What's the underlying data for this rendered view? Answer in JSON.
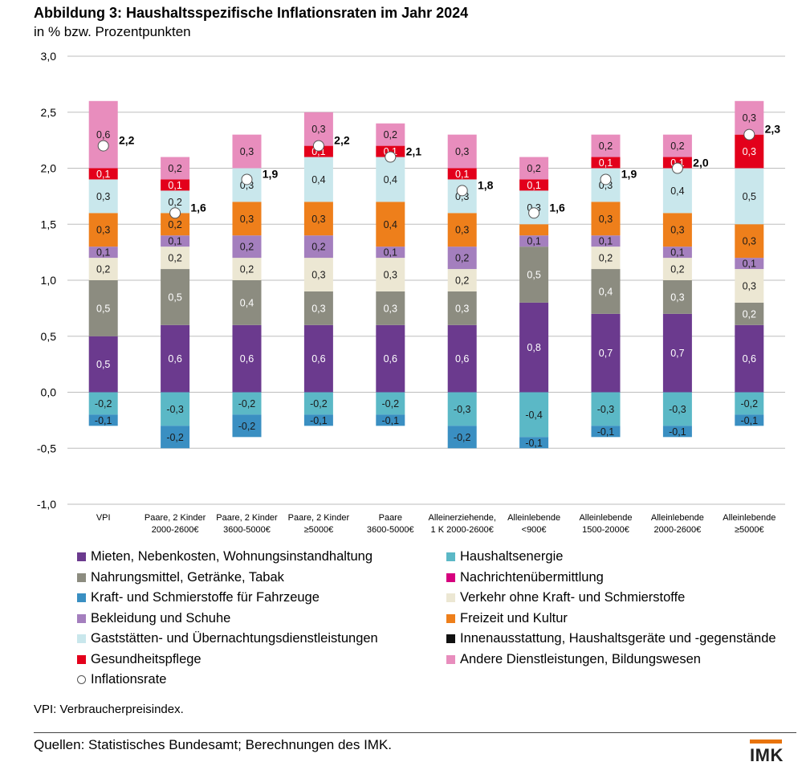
{
  "header": {
    "title": "Abbildung 3: Haushaltsspezifische Inflationsraten im Jahr 2024",
    "subtitle": "in % bzw. Prozentpunkten"
  },
  "chart_data": {
    "type": "bar",
    "stacked": true,
    "ylim": [
      -1.0,
      3.0
    ],
    "yticks": [
      "3,0",
      "2,5",
      "2,0",
      "1,5",
      "1,0",
      "0,5",
      "0,0",
      "-0,5",
      "-1,0"
    ],
    "ytick_values": [
      3.0,
      2.5,
      2.0,
      1.5,
      1.0,
      0.5,
      0.0,
      -0.5,
      -1.0
    ],
    "grid": true,
    "categories": [
      [
        "VPI",
        ""
      ],
      [
        "Paare, 2  Kinder",
        "2000-2600€"
      ],
      [
        "Paare, 2  Kinder",
        "3600-5000€"
      ],
      [
        "Paare, 2  Kinder",
        "≥5000€"
      ],
      [
        "Paare",
        "3600-5000€"
      ],
      [
        "Alleinerziehende,",
        "1 K 2000-2600€"
      ],
      [
        "Alleinlebende",
        "<900€"
      ],
      [
        "Alleinlebende",
        "1500-2000€"
      ],
      [
        "Alleinlebende",
        "2000-2600€"
      ],
      [
        "Alleinlebende",
        "≥5000€"
      ]
    ],
    "series": [
      {
        "name": "Mieten, Nebenkosten, Wohnungsinstandhaltung",
        "color": "#6b3a8e",
        "values": [
          0.5,
          0.6,
          0.6,
          0.6,
          0.6,
          0.6,
          0.8,
          0.7,
          0.7,
          0.6
        ],
        "labels": [
          "0,5",
          "0,6",
          "0,6",
          "0,6",
          "0,6",
          "0,6",
          "0,8",
          "0,7",
          "0,7",
          "0,6"
        ]
      },
      {
        "name": "Nahrungsmittel, Getränke, Tabak",
        "color": "#8c8c80",
        "values": [
          0.5,
          0.5,
          0.4,
          0.3,
          0.3,
          0.3,
          0.5,
          0.4,
          0.3,
          0.2
        ],
        "labels": [
          "0,5",
          "0,5",
          "0,4",
          "0,3",
          "0,3",
          "0,3",
          "0,5",
          "0,4",
          "0,3",
          "0,2"
        ]
      },
      {
        "name": "Verkehr ohne Kraft- und Schmierstoffe",
        "color": "#ece7d3",
        "values": [
          0.2,
          0.2,
          0.2,
          0.3,
          0.3,
          0.2,
          0.0,
          0.2,
          0.2,
          0.3
        ],
        "labels": [
          "0,2",
          "0,2",
          "0,2",
          "0,3",
          "0,3",
          "0,2",
          "",
          "0,2",
          "0,2",
          "0,3"
        ]
      },
      {
        "name": "Bekleidung und Schuhe",
        "color": "#a47fbe",
        "values": [
          0.1,
          0.1,
          0.2,
          0.2,
          0.1,
          0.2,
          0.1,
          0.1,
          0.1,
          0.1
        ],
        "labels": [
          "0,1",
          "0,1",
          "0,2",
          "0,2",
          "0,1",
          "0,2",
          "0,1",
          "0,1",
          "0,1",
          "0,1"
        ]
      },
      {
        "name": "Freizeit und Kultur",
        "color": "#ee7f1b",
        "values": [
          0.3,
          0.2,
          0.3,
          0.3,
          0.4,
          0.3,
          0.1,
          0.3,
          0.3,
          0.3
        ],
        "labels": [
          "0,3",
          "0,2",
          "0,3",
          "0,3",
          "0,4",
          "0,3",
          "",
          "0,3",
          "0,3",
          "0,3"
        ]
      },
      {
        "name": "Gaststätten- und Übernachtungsdienstleistungen",
        "color": "#c9e7ec",
        "values": [
          0.3,
          0.2,
          0.3,
          0.4,
          0.4,
          0.3,
          0.3,
          0.3,
          0.4,
          0.5
        ],
        "labels": [
          "0,3",
          "0,2",
          "0,3",
          "0,4",
          "0,4",
          "0,3",
          "0,3",
          "0,3",
          "0,4",
          "0,5"
        ]
      },
      {
        "name": "Gesundheitspflege",
        "color": "#e3001b",
        "values": [
          0.1,
          0.1,
          0.0,
          0.1,
          0.1,
          0.1,
          0.1,
          0.1,
          0.1,
          0.3
        ],
        "labels": [
          "0,1",
          "0,1",
          "",
          "0,1",
          "0,1",
          "0,1",
          "0,1",
          "0,1",
          "0,1",
          "0,3"
        ]
      },
      {
        "name": "Andere Dienstleistungen, Bildungswesen",
        "color": "#e88dbd",
        "values": [
          0.6,
          0.2,
          0.3,
          0.3,
          0.2,
          0.3,
          0.2,
          0.2,
          0.2,
          0.3
        ],
        "labels": [
          "0,6",
          "0,2",
          "0,3",
          "0,3",
          "0,2",
          "0,3",
          "0,2",
          "0,2",
          "0,2",
          "0,3"
        ]
      },
      {
        "name": "Haushaltsenergie",
        "color": "#5bb8c6",
        "values": [
          -0.2,
          -0.3,
          -0.2,
          -0.2,
          -0.2,
          -0.3,
          -0.4,
          -0.3,
          -0.3,
          -0.2
        ],
        "labels": [
          "-0,2",
          "-0,3",
          "-0,2",
          "-0,2",
          "-0,2",
          "-0,3",
          "-0,4",
          "-0,3",
          "-0,3",
          "-0,2"
        ]
      },
      {
        "name": "Kraft- und Schmierstoffe für Fahrzeuge",
        "color": "#3a8fc2",
        "values": [
          -0.1,
          -0.2,
          -0.2,
          -0.1,
          -0.1,
          -0.2,
          -0.1,
          -0.1,
          -0.1,
          -0.1
        ],
        "labels": [
          "-0,1",
          "-0,2",
          "-0,2",
          "-0,1",
          "-0,1",
          "-0,2",
          "-0,1",
          "-0,1",
          "-0,1",
          "-0,1"
        ]
      }
    ],
    "inflation_rate": {
      "name": "Inflationsrate",
      "values": [
        2.2,
        1.6,
        1.9,
        2.2,
        2.1,
        1.8,
        1.6,
        1.9,
        2.0,
        2.3
      ],
      "labels": [
        "2,2",
        "1,6",
        "1,9",
        "2,2",
        "2,1",
        "1,8",
        "1,6",
        "1,9",
        "2,0",
        "2,3"
      ]
    }
  },
  "legend": {
    "left": [
      {
        "label": "Mieten, Nebenkosten, Wohnungsinstandhaltung",
        "color": "#6b3a8e"
      },
      {
        "label": "Nahrungsmittel, Getränke, Tabak",
        "color": "#8c8c80"
      },
      {
        "label": "Kraft- und Schmierstoffe für Fahrzeuge",
        "color": "#3a8fc2"
      },
      {
        "label": "Bekleidung und Schuhe",
        "color": "#a47fbe"
      },
      {
        "label": "Gaststätten- und Übernachtungsdienstleistungen",
        "color": "#c9e7ec"
      },
      {
        "label": "Gesundheitspflege",
        "color": "#e3001b"
      },
      {
        "label": "Inflationsrate",
        "color": "circle"
      }
    ],
    "right": [
      {
        "label": "Haushaltsenergie",
        "color": "#5bb8c6"
      },
      {
        "label": "Nachrichtenübermittlung",
        "color": "#d6007e"
      },
      {
        "label": "Verkehr ohne Kraft- und Schmierstoffe",
        "color": "#ece7d3"
      },
      {
        "label": "Freizeit und Kultur",
        "color": "#ee7f1b"
      },
      {
        "label": "Innenausstattung, Haushaltsgeräte und -gegenstände",
        "color": "#111111"
      },
      {
        "label": "Andere Dienstleistungen, Bildungswesen",
        "color": "#e88dbd"
      }
    ]
  },
  "footer": {
    "note": "VPI: Verbraucherpreisindex.",
    "source": "Quellen: Statistisches Bundesamt; Berechnungen des IMK.",
    "logo": "IMK"
  }
}
